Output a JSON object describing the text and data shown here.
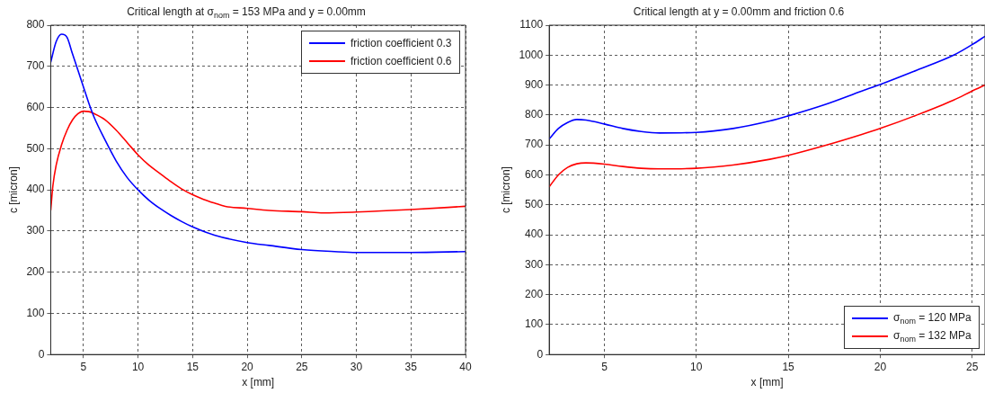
{
  "chart_data": [
    {
      "type": "line",
      "title": "Critical length at σ$_{nom}$ = 153 MPa and y = 0.00mm",
      "xlabel": "x [mm]",
      "ylabel": "c [micron]",
      "xlim": [
        2,
        40
      ],
      "xticks": [
        5,
        10,
        15,
        20,
        25,
        30,
        35,
        40
      ],
      "ylim": [
        0,
        800
      ],
      "yticks": [
        0,
        100,
        200,
        300,
        400,
        500,
        600,
        700,
        800
      ],
      "grid": true,
      "legend": "top right",
      "marker": "none",
      "line_style": "solid",
      "series": [
        {
          "name": "friction coefficient 0.3",
          "color": "#0000ff",
          "x": [
            2,
            2.5,
            3,
            3.5,
            4,
            4.5,
            5,
            5.5,
            6,
            7,
            8,
            9,
            10,
            11,
            12,
            13,
            14,
            15,
            17,
            20,
            22,
            25,
            28,
            30,
            35,
            40
          ],
          "values": [
            710,
            760,
            778,
            770,
            730,
            690,
            650,
            610,
            575,
            520,
            470,
            430,
            400,
            375,
            355,
            338,
            323,
            310,
            290,
            272,
            265,
            255,
            250,
            248,
            248,
            250
          ]
        },
        {
          "name": "friction coefficient 0.6",
          "color": "#ff0000",
          "x": [
            2,
            2.2,
            2.5,
            3,
            3.5,
            4,
            4.5,
            5,
            5.5,
            6,
            7,
            8,
            9,
            10,
            11,
            12,
            13,
            14,
            15,
            16,
            17,
            18,
            20,
            22,
            25,
            27,
            30,
            35,
            40
          ],
          "values": [
            350,
            410,
            460,
            510,
            545,
            570,
            585,
            591,
            590,
            585,
            570,
            545,
            515,
            485,
            460,
            440,
            420,
            402,
            388,
            377,
            368,
            360,
            355,
            350,
            347,
            344,
            346,
            352,
            360
          ]
        }
      ]
    },
    {
      "type": "line",
      "title": "Critical length at y = 0.00mm and friction 0.6",
      "xlabel": "x [mm]",
      "ylabel": "c [micron]",
      "xlim": [
        2,
        25.7
      ],
      "xticks": [
        5,
        10,
        15,
        20,
        25
      ],
      "ylim": [
        0,
        1100
      ],
      "yticks": [
        0,
        100,
        200,
        300,
        400,
        500,
        600,
        700,
        800,
        900,
        1000,
        1100
      ],
      "grid": true,
      "legend": "bottom right",
      "marker": "none",
      "line_style": "solid",
      "series": [
        {
          "name": "σ$_{nom}$ = 120 MPa",
          "color": "#0000ff",
          "x": [
            2,
            2.5,
            3,
            3.5,
            4,
            5,
            6,
            7,
            8,
            10,
            12,
            14,
            15,
            17,
            19,
            20,
            22,
            24,
            25,
            25.7
          ],
          "values": [
            720,
            755,
            775,
            785,
            783,
            770,
            755,
            745,
            740,
            742,
            755,
            780,
            797,
            835,
            880,
            902,
            950,
            1000,
            1035,
            1063
          ]
        },
        {
          "name": "σ$_{nom}$ = 132 MPa",
          "color": "#ff0000",
          "x": [
            2,
            2.5,
            3,
            3.5,
            4,
            5,
            6,
            7,
            8,
            10,
            12,
            14,
            15,
            17,
            19,
            20,
            22,
            24,
            25,
            25.7
          ],
          "values": [
            560,
            600,
            625,
            637,
            640,
            636,
            628,
            622,
            620,
            622,
            633,
            652,
            665,
            698,
            735,
            755,
            800,
            850,
            880,
            900
          ]
        }
      ]
    }
  ]
}
